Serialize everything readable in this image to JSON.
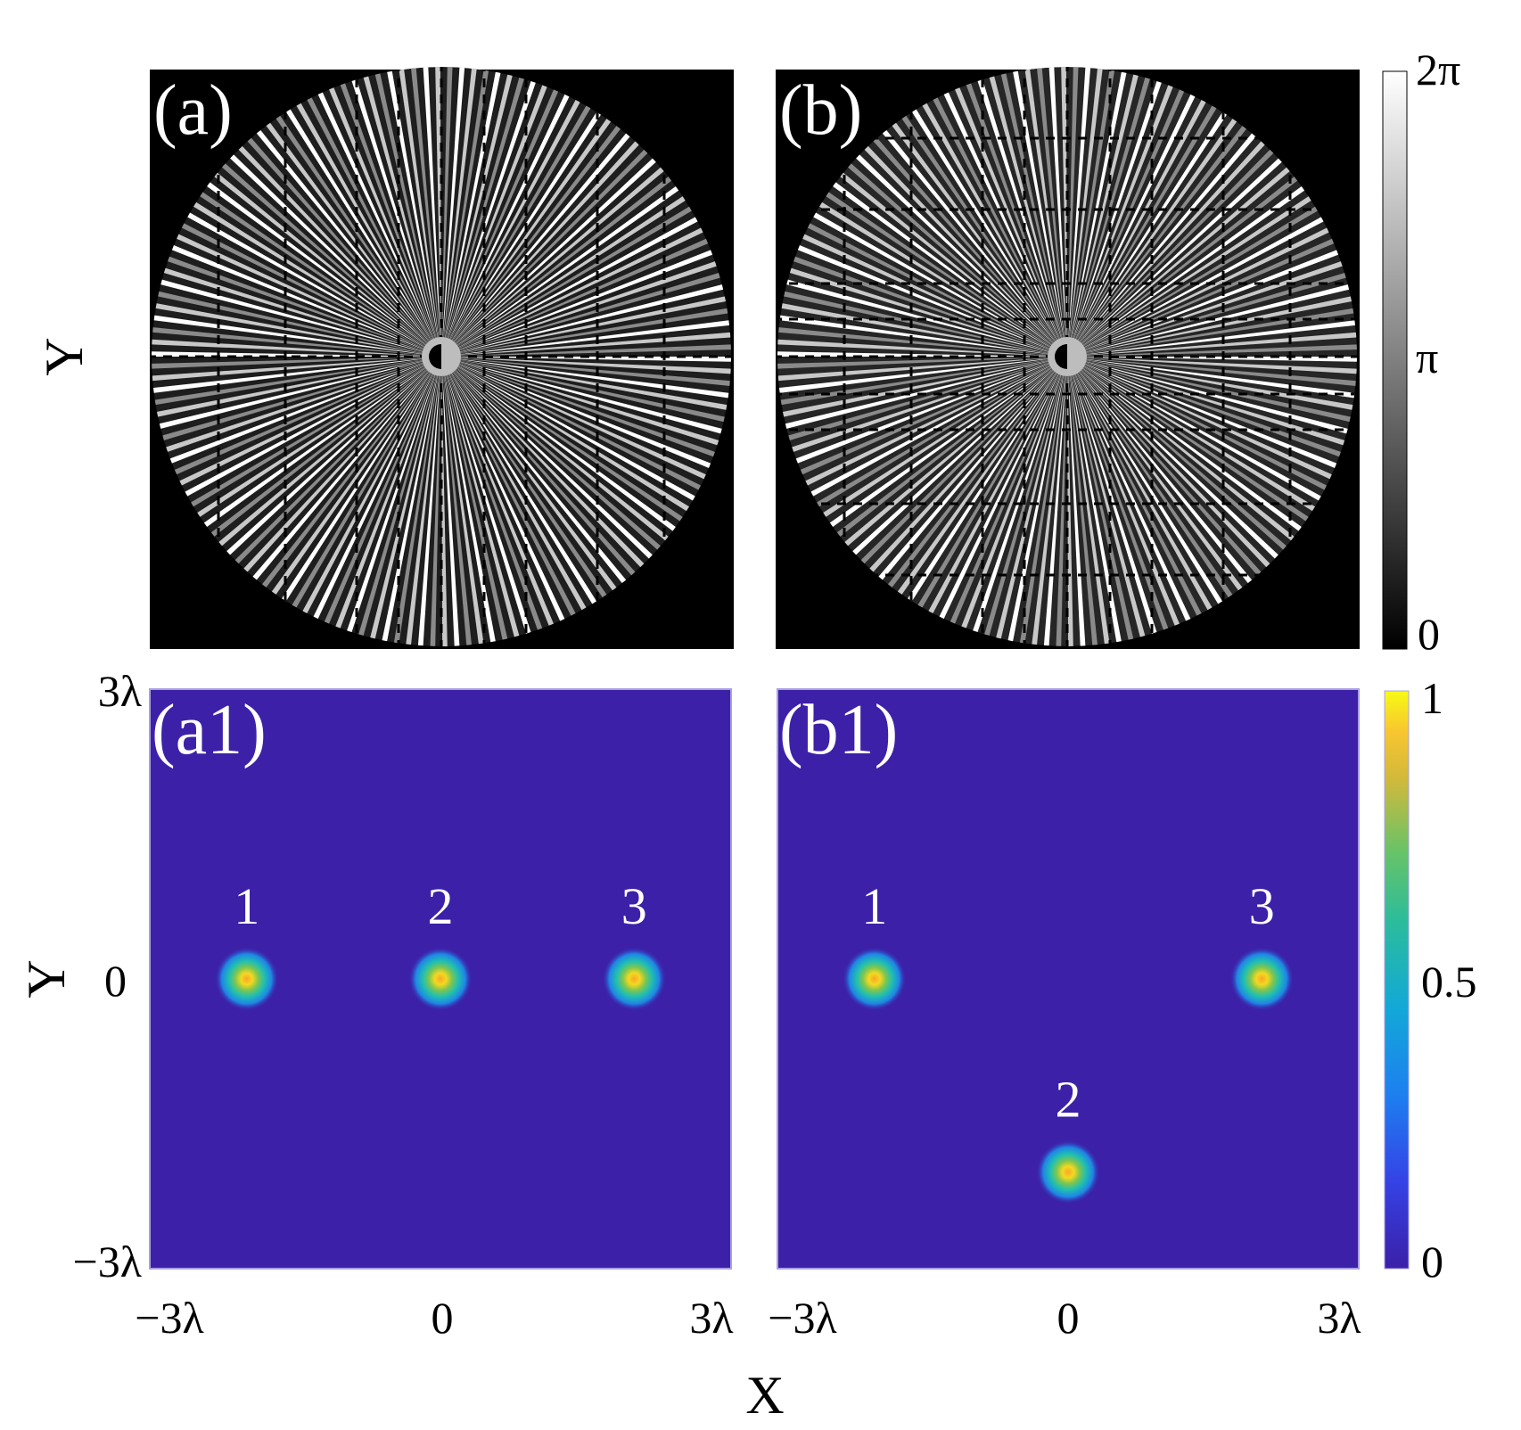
{
  "chart_data": [
    {
      "id": "a",
      "type": "heatmap",
      "panel_label": "(a)",
      "content": "phase-mask",
      "pattern": "radial",
      "ylabel": "Y",
      "colormap": "gray",
      "colorbar_range": [
        0,
        6.2832
      ],
      "colorbar_ticks": [
        "0",
        "π",
        "2π"
      ]
    },
    {
      "id": "b",
      "type": "heatmap",
      "panel_label": "(b)",
      "content": "phase-mask",
      "pattern": "radial-with-rectangular-segments",
      "colormap": "gray",
      "colorbar_range": [
        0,
        6.2832
      ],
      "colorbar_ticks": [
        "0",
        "π",
        "2π"
      ]
    },
    {
      "id": "a1",
      "type": "heatmap",
      "panel_label": "(a1)",
      "content": "normalized-intensity",
      "xlabel": "",
      "ylabel": "Y",
      "xlim": [
        -3,
        3
      ],
      "ylim": [
        -3,
        3
      ],
      "unit": "λ",
      "xticks": [
        "−3λ",
        "0",
        "3λ"
      ],
      "yticks": [
        "−3λ",
        "0",
        "3λ"
      ],
      "colormap": "parula",
      "colorbar_range": [
        0,
        1
      ],
      "colorbar_ticks": [
        "0",
        "0.5",
        "1"
      ],
      "spots": [
        {
          "label": "1",
          "x": -2.0,
          "y": 0,
          "peak": 1
        },
        {
          "label": "2",
          "x": 0,
          "y": 0,
          "peak": 1
        },
        {
          "label": "3",
          "x": 2.0,
          "y": 0,
          "peak": 1
        }
      ]
    },
    {
      "id": "b1",
      "type": "heatmap",
      "panel_label": "(b1)",
      "content": "normalized-intensity",
      "xlabel": "X",
      "xlim": [
        -3,
        3
      ],
      "ylim": [
        -3,
        3
      ],
      "unit": "λ",
      "xticks": [
        "−3λ",
        "0",
        "3λ"
      ],
      "colormap": "parula",
      "colorbar_range": [
        0,
        1
      ],
      "colorbar_ticks": [
        "0",
        "0.5",
        "1"
      ],
      "spots": [
        {
          "label": "1",
          "x": -2.0,
          "y": 0,
          "peak": 1
        },
        {
          "label": "2",
          "x": 0,
          "y": -2.0,
          "peak": 1
        },
        {
          "label": "3",
          "x": 2.0,
          "y": 0,
          "peak": 1
        }
      ]
    }
  ],
  "colors": {
    "background_intensity": "#3c20a8",
    "spot_edge": "#1f7fe8",
    "spot_mid": "#22c2a4",
    "spot_core": "#f0e020",
    "spot_peak": "#f7a828",
    "phase_background": "#000000"
  }
}
